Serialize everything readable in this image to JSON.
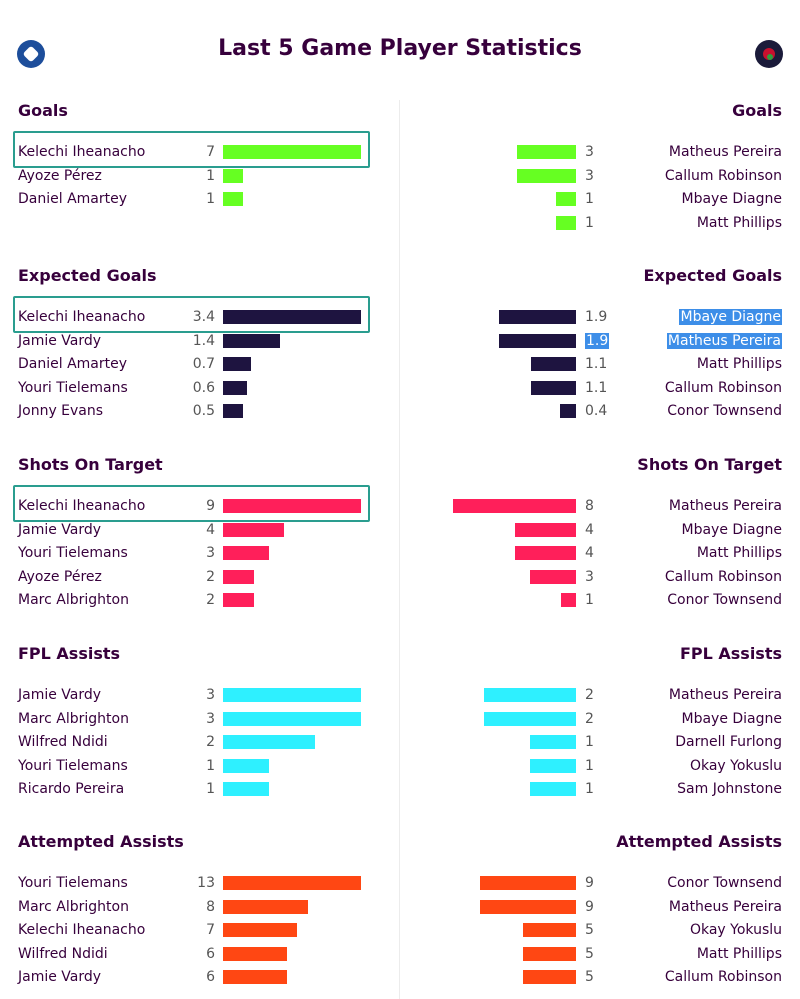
{
  "page": {
    "title": "Last 5 Game Player Statistics",
    "left_crest_icon": "leicester-crest-icon",
    "right_crest_icon": "west-brom-crest-icon"
  },
  "chart_data": [
    {
      "type": "bar",
      "title": "Goals",
      "color": "#66ff22",
      "max": 7,
      "left": [
        {
          "name": "Kelechi Iheanacho",
          "value": 7,
          "highlight": true
        },
        {
          "name": "Ayoze Pérez",
          "value": 1
        },
        {
          "name": "Daniel Amartey",
          "value": 1
        }
      ],
      "right": [
        {
          "name": "Matheus Pereira",
          "value": 3
        },
        {
          "name": "Callum Robinson",
          "value": 3
        },
        {
          "name": "Mbaye Diagne",
          "value": 1
        },
        {
          "name": "Matt Phillips",
          "value": 1
        }
      ]
    },
    {
      "type": "bar",
      "title": "Expected Goals",
      "color": "#1e1440",
      "max": 3.4,
      "left": [
        {
          "name": "Kelechi Iheanacho",
          "value": 3.4,
          "highlight": true
        },
        {
          "name": "Jamie Vardy",
          "value": 1.4
        },
        {
          "name": "Daniel Amartey",
          "value": 0.7
        },
        {
          "name": "Youri Tielemans",
          "value": 0.6
        },
        {
          "name": "Jonny Evans",
          "value": 0.5
        }
      ],
      "right": [
        {
          "name": "Mbaye Diagne",
          "value": 1.9,
          "selected_name": true
        },
        {
          "name": "Matheus Pereira",
          "value": 1.9,
          "selected_name": true,
          "selected_value": true
        },
        {
          "name": "Matt Phillips",
          "value": 1.1
        },
        {
          "name": "Callum Robinson",
          "value": 1.1
        },
        {
          "name": "Conor Townsend",
          "value": 0.4
        }
      ]
    },
    {
      "type": "bar",
      "title": "Shots On Target",
      "color": "#ff1f5a",
      "max": 9,
      "left": [
        {
          "name": "Kelechi Iheanacho",
          "value": 9,
          "highlight": true
        },
        {
          "name": "Jamie Vardy",
          "value": 4
        },
        {
          "name": "Youri Tielemans",
          "value": 3
        },
        {
          "name": "Ayoze Pérez",
          "value": 2
        },
        {
          "name": "Marc Albrighton",
          "value": 2
        }
      ],
      "right": [
        {
          "name": "Matheus Pereira",
          "value": 8
        },
        {
          "name": "Mbaye Diagne",
          "value": 4
        },
        {
          "name": "Matt Phillips",
          "value": 4
        },
        {
          "name": "Callum Robinson",
          "value": 3
        },
        {
          "name": "Conor Townsend",
          "value": 1
        }
      ]
    },
    {
      "type": "bar",
      "title": "FPL Assists",
      "color": "#2ef0ff",
      "max": 3,
      "left": [
        {
          "name": "Jamie Vardy",
          "value": 3
        },
        {
          "name": "Marc Albrighton",
          "value": 3
        },
        {
          "name": "Wilfred Ndidi",
          "value": 2
        },
        {
          "name": "Youri Tielemans",
          "value": 1
        },
        {
          "name": "Ricardo Pereira",
          "value": 1
        }
      ],
      "right": [
        {
          "name": "Matheus Pereira",
          "value": 2
        },
        {
          "name": "Mbaye Diagne",
          "value": 2
        },
        {
          "name": "Darnell Furlong",
          "value": 1
        },
        {
          "name": "Okay Yokuslu",
          "value": 1
        },
        {
          "name": "Sam Johnstone",
          "value": 1
        }
      ]
    },
    {
      "type": "bar",
      "title": "Attempted Assists",
      "color": "#ff4713",
      "max": 13,
      "left": [
        {
          "name": "Youri Tielemans",
          "value": 13
        },
        {
          "name": "Marc Albrighton",
          "value": 8
        },
        {
          "name": "Kelechi Iheanacho",
          "value": 7
        },
        {
          "name": "Wilfred Ndidi",
          "value": 6
        },
        {
          "name": "Jamie Vardy",
          "value": 6
        }
      ],
      "right": [
        {
          "name": "Conor Townsend",
          "value": 9
        },
        {
          "name": "Matheus Pereira",
          "value": 9
        },
        {
          "name": "Okay Yokuslu",
          "value": 5
        },
        {
          "name": "Matt Phillips",
          "value": 5
        },
        {
          "name": "Callum Robinson",
          "value": 5
        }
      ]
    }
  ]
}
